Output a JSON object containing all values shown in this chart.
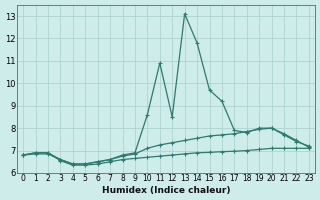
{
  "xlabel": "Humidex (Indice chaleur)",
  "background_color": "#ceecea",
  "grid_color": "#aed4d0",
  "line_color": "#2d7a6e",
  "series1_x": [
    0,
    1,
    2,
    3,
    4,
    5,
    6,
    7,
    8,
    9,
    10,
    11,
    12,
    13,
    14,
    15,
    16,
    17,
    18,
    19,
    20,
    21,
    22,
    23
  ],
  "series1_y": [
    6.8,
    6.9,
    6.9,
    6.6,
    6.4,
    6.4,
    6.5,
    6.6,
    6.8,
    6.9,
    8.6,
    10.9,
    8.5,
    13.1,
    11.8,
    9.7,
    9.2,
    7.9,
    7.8,
    8.0,
    8.0,
    7.7,
    7.4,
    7.2
  ],
  "series2_x": [
    0,
    1,
    2,
    3,
    4,
    5,
    6,
    7,
    8,
    9,
    10,
    11,
    12,
    13,
    14,
    15,
    16,
    17,
    18,
    19,
    20,
    21,
    22,
    23
  ],
  "series2_y": [
    6.8,
    6.85,
    6.85,
    6.6,
    6.4,
    6.4,
    6.5,
    6.6,
    6.75,
    6.85,
    7.1,
    7.25,
    7.35,
    7.45,
    7.55,
    7.65,
    7.7,
    7.75,
    7.85,
    7.95,
    8.0,
    7.75,
    7.45,
    7.15
  ],
  "series3_x": [
    0,
    1,
    2,
    3,
    4,
    5,
    6,
    7,
    8,
    9,
    10,
    11,
    12,
    13,
    14,
    15,
    16,
    17,
    18,
    19,
    20,
    21,
    22,
    23
  ],
  "series3_y": [
    6.8,
    6.9,
    6.9,
    6.55,
    6.35,
    6.35,
    6.4,
    6.5,
    6.6,
    6.65,
    6.7,
    6.75,
    6.8,
    6.85,
    6.9,
    6.92,
    6.95,
    6.97,
    7.0,
    7.05,
    7.1,
    7.1,
    7.1,
    7.1
  ],
  "ylim": [
    6.0,
    13.5
  ],
  "xlim": [
    -0.5,
    23.5
  ],
  "yticks": [
    6,
    7,
    8,
    9,
    10,
    11,
    12,
    13
  ],
  "xticks": [
    0,
    1,
    2,
    3,
    4,
    5,
    6,
    7,
    8,
    9,
    10,
    11,
    12,
    13,
    14,
    15,
    16,
    17,
    18,
    19,
    20,
    21,
    22,
    23
  ],
  "xlabel_fontsize": 6.5,
  "tick_fontsize": 5.5,
  "ytick_fontsize": 6.0
}
